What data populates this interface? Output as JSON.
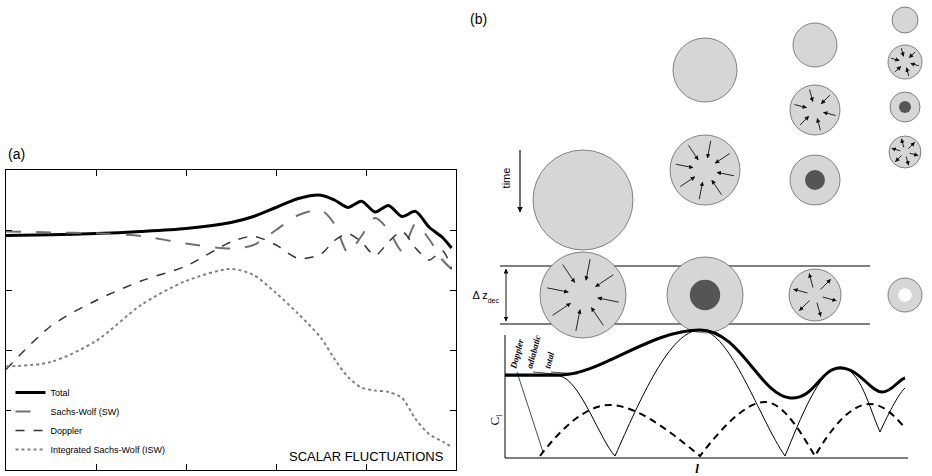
{
  "chart_data": {
    "type": "line",
    "panel_label": "(a)",
    "x": [
      0,
      10,
      20,
      30,
      40,
      50,
      55,
      60,
      65,
      70,
      73,
      76,
      79,
      82,
      85,
      88,
      91,
      94,
      97,
      99
    ],
    "series": [
      {
        "name": "Total",
        "color": "#000000",
        "line_style": "solid",
        "values": [
          78.2,
          78.4,
          78.8,
          79.5,
          80.5,
          82.5,
          84.5,
          87.5,
          90.5,
          91.6,
          90,
          87.5,
          89.6,
          86,
          88.2,
          84.5,
          86.2,
          81,
          77.5,
          74
        ]
      },
      {
        "name": "Sachs-Wolf (SW)",
        "color": "#707070",
        "line_style": "longdash",
        "values": [
          79.5,
          79.2,
          78.9,
          78,
          75.5,
          73.8,
          75,
          80,
          85,
          86.6,
          82,
          72.5,
          78,
          84,
          80,
          73,
          82,
          77,
          70,
          67
        ]
      },
      {
        "name": "Doppler",
        "color": "#333333",
        "line_style": "dash",
        "values": [
          33.5,
          48,
          56.5,
          63,
          68,
          76,
          77.9,
          75,
          70.5,
          72,
          76.5,
          78.8,
          76,
          71.5,
          76,
          79.5,
          74,
          70,
          73,
          67
        ]
      },
      {
        "name": "Integrated Sachs-Wolf (ISW)",
        "color": "#808080",
        "line_style": "dot",
        "values": [
          34.5,
          36,
          43,
          55,
          63,
          67,
          65,
          59,
          52,
          44,
          37,
          31,
          27.5,
          26.5,
          26,
          24,
          17,
          12,
          9.5,
          7.7
        ]
      }
    ],
    "xlim": [
      0,
      100
    ],
    "ylim": [
      0,
      100
    ],
    "xticks": [
      0,
      20,
      40,
      60,
      80,
      100
    ],
    "yticks": [
      0,
      20,
      40,
      60,
      80,
      100
    ],
    "tick_labels": false,
    "grid": false,
    "legend": "bottom-left",
    "annotations": [
      "SCALAR FLUCTUATIONS"
    ]
  },
  "diagram": {
    "label": "(b)",
    "time_label": "time",
    "band_label": {
      "text": "Δ z",
      "subscript": "dec"
    },
    "sketch": {
      "y_label": {
        "text": "C",
        "subscript": "l"
      },
      "x_label": "l",
      "curve_labels": [
        "Doppler",
        "adiabatic",
        "total"
      ]
    }
  }
}
